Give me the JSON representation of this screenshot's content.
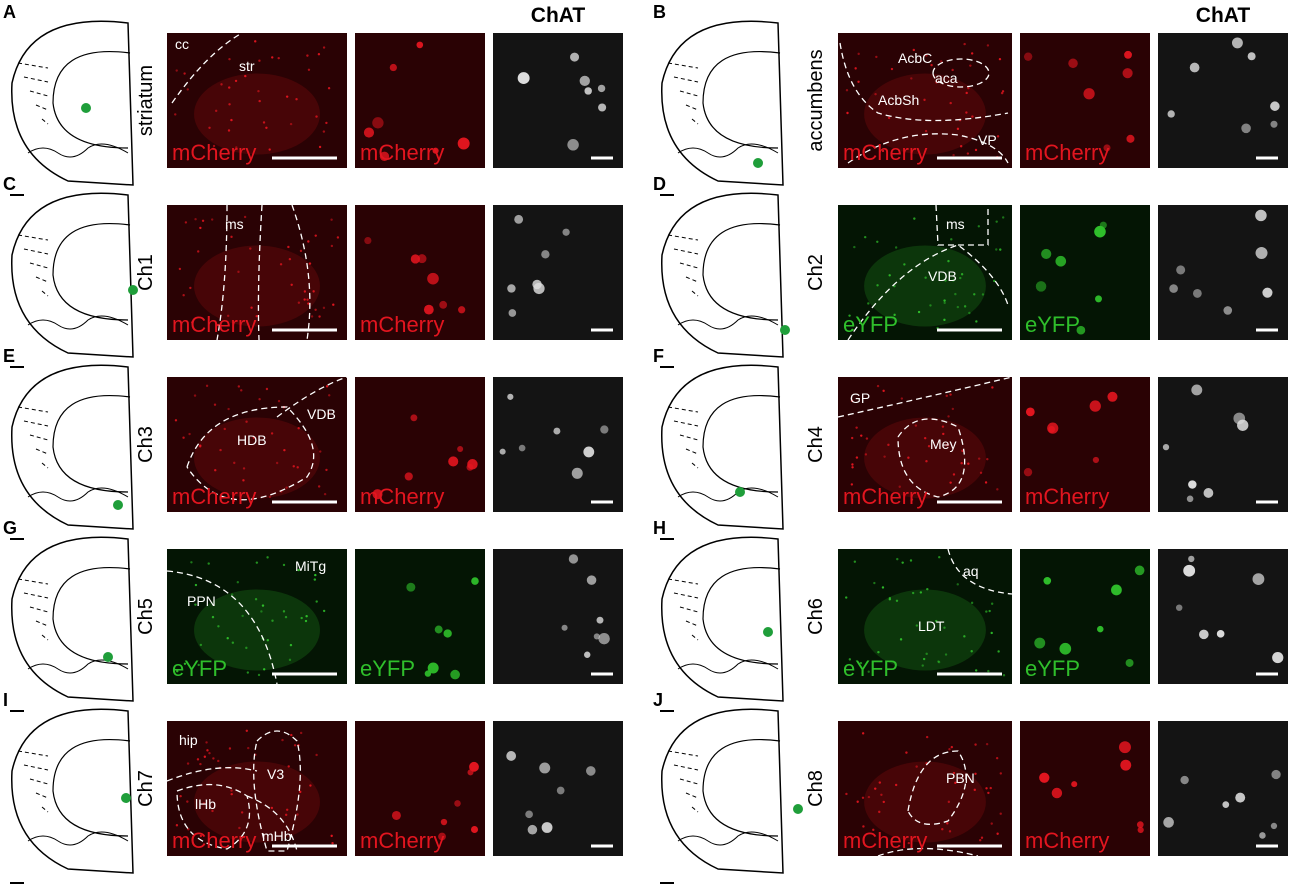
{
  "column_headers": [
    "ChAT",
    "ChAT"
  ],
  "panels": [
    {
      "letter": "A",
      "region": "striatum",
      "markers": [
        "mCherry",
        "mCherry"
      ],
      "annotations": [
        "cc",
        "str"
      ]
    },
    {
      "letter": "B",
      "region": "accumbens",
      "markers": [
        "mCherry",
        "mCherry"
      ],
      "annotations": [
        "AcbC",
        "aca",
        "AcbSh",
        "VP"
      ]
    },
    {
      "letter": "C",
      "region": "Ch1",
      "markers": [
        "mCherry",
        "mCherry"
      ],
      "annotations": [
        "ms"
      ]
    },
    {
      "letter": "D",
      "region": "Ch2",
      "markers": [
        "eYFP",
        "eYFP"
      ],
      "annotations": [
        "ms",
        "VDB"
      ]
    },
    {
      "letter": "E",
      "region": "Ch3",
      "markers": [
        "mCherry",
        "mCherry"
      ],
      "annotations": [
        "VDB",
        "HDB"
      ]
    },
    {
      "letter": "F",
      "region": "Ch4",
      "markers": [
        "mCherry",
        "mCherry"
      ],
      "annotations": [
        "GP",
        "Mey"
      ]
    },
    {
      "letter": "G",
      "region": "Ch5",
      "markers": [
        "eYFP",
        "eYFP"
      ],
      "annotations": [
        "MiTg",
        "PPN"
      ]
    },
    {
      "letter": "H",
      "region": "Ch6",
      "markers": [
        "eYFP",
        "eYFP"
      ],
      "annotations": [
        "aq",
        "LDT"
      ]
    },
    {
      "letter": "I",
      "region": "Ch7",
      "markers": [
        "mCherry",
        "mCherry"
      ],
      "annotations": [
        "hip",
        "V3",
        "lHb",
        "mHb"
      ]
    },
    {
      "letter": "J",
      "region": "Ch8",
      "markers": [
        "mCherry",
        "mCherry"
      ],
      "annotations": [
        "PBN"
      ]
    }
  ]
}
